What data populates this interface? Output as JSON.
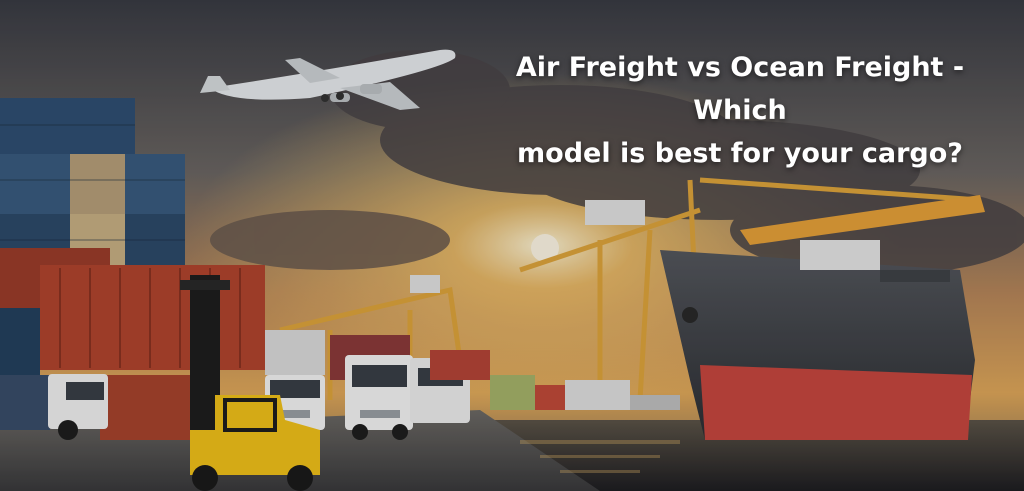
{
  "headline": {
    "line1": "Air Freight vs Ocean Freight - Which",
    "line2": "model is best for your cargo?"
  },
  "colors": {
    "sky_top": "#3d3f47",
    "sunset_glow": "#f3b55a",
    "ocean": "#2b2b30",
    "ship_hull": "#3a3d42",
    "ship_bottom": "#c8473f",
    "crane": "#e8a23a",
    "forklift": "#f2c21a",
    "container_red": "#b2452e",
    "container_blue": "#2f4f73"
  }
}
